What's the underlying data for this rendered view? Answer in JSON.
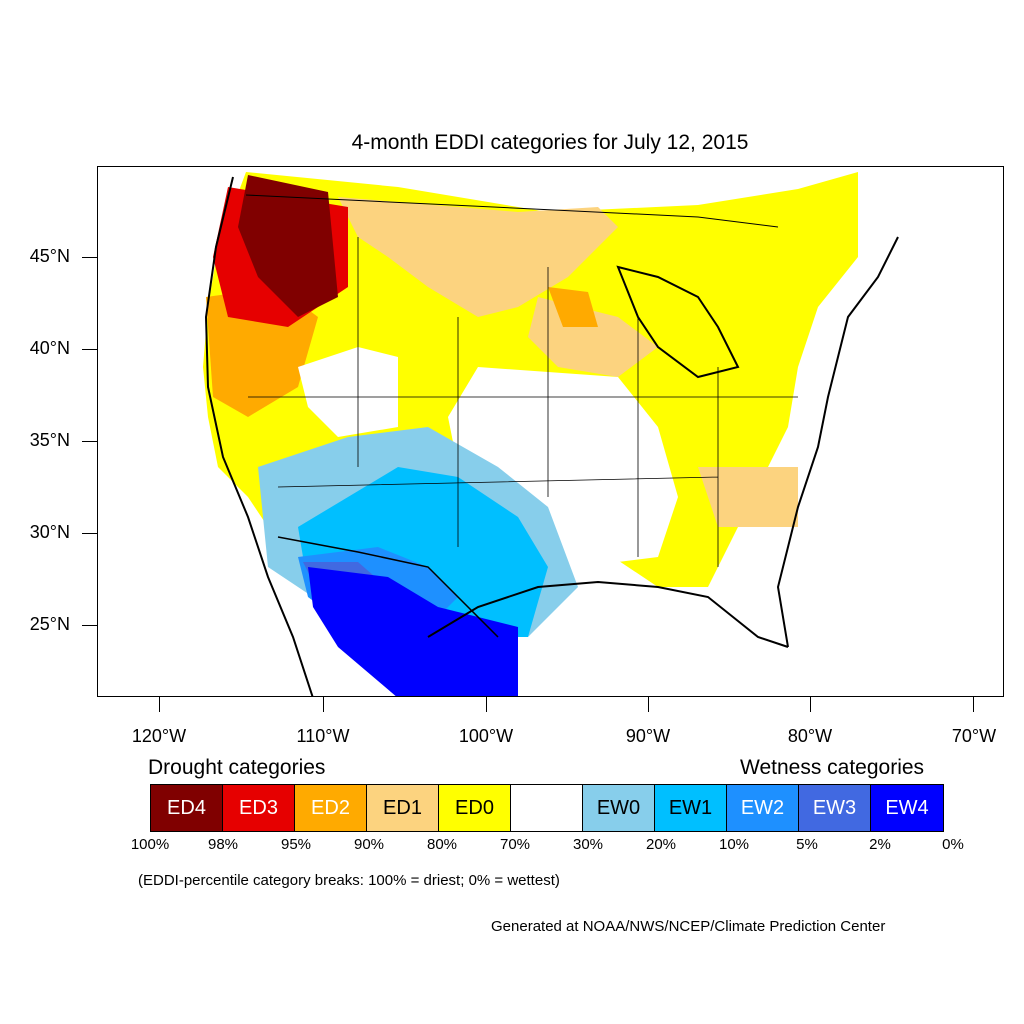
{
  "title": "4-month EDDI categories for July 12, 2015",
  "axes": {
    "y_ticks": [
      "45°N",
      "40°N",
      "35°N",
      "30°N",
      "25°N"
    ],
    "x_ticks": [
      "120°W",
      "110°W",
      "100°W",
      "90°W",
      "80°W",
      "70°W"
    ]
  },
  "legend": {
    "drought_heading": "Drought categories",
    "wetness_heading": "Wetness categories",
    "categories": [
      {
        "label": "ED4",
        "color": "#800000",
        "text_color": "#ffffff"
      },
      {
        "label": "ED3",
        "color": "#e60000",
        "text_color": "#ffffff"
      },
      {
        "label": "ED2",
        "color": "#ffaa00",
        "text_color": "#ffffff"
      },
      {
        "label": "ED1",
        "color": "#fcd37f",
        "text_color": "#000000"
      },
      {
        "label": "ED0",
        "color": "#ffff00",
        "text_color": "#000000"
      },
      {
        "label": "",
        "color": "#ffffff",
        "text_color": "#000000"
      },
      {
        "label": "EW0",
        "color": "#87ceeb",
        "text_color": "#000000"
      },
      {
        "label": "EW1",
        "color": "#00bfff",
        "text_color": "#000000"
      },
      {
        "label": "EW2",
        "color": "#1e90ff",
        "text_color": "#ffffff"
      },
      {
        "label": "EW3",
        "color": "#4169e1",
        "text_color": "#ffffff"
      },
      {
        "label": "EW4",
        "color": "#0000ff",
        "text_color": "#ffffff"
      }
    ],
    "breaks": [
      "100%",
      "98%",
      "95%",
      "90%",
      "80%",
      "70%",
      "30%",
      "20%",
      "10%",
      "5%",
      "2%",
      "0%"
    ]
  },
  "note": "(EDDI-percentile category breaks: 100% = driest; 0% = wettest)",
  "credit": "Generated at NOAA/NWS/NCEP/Climate Prediction Center"
}
